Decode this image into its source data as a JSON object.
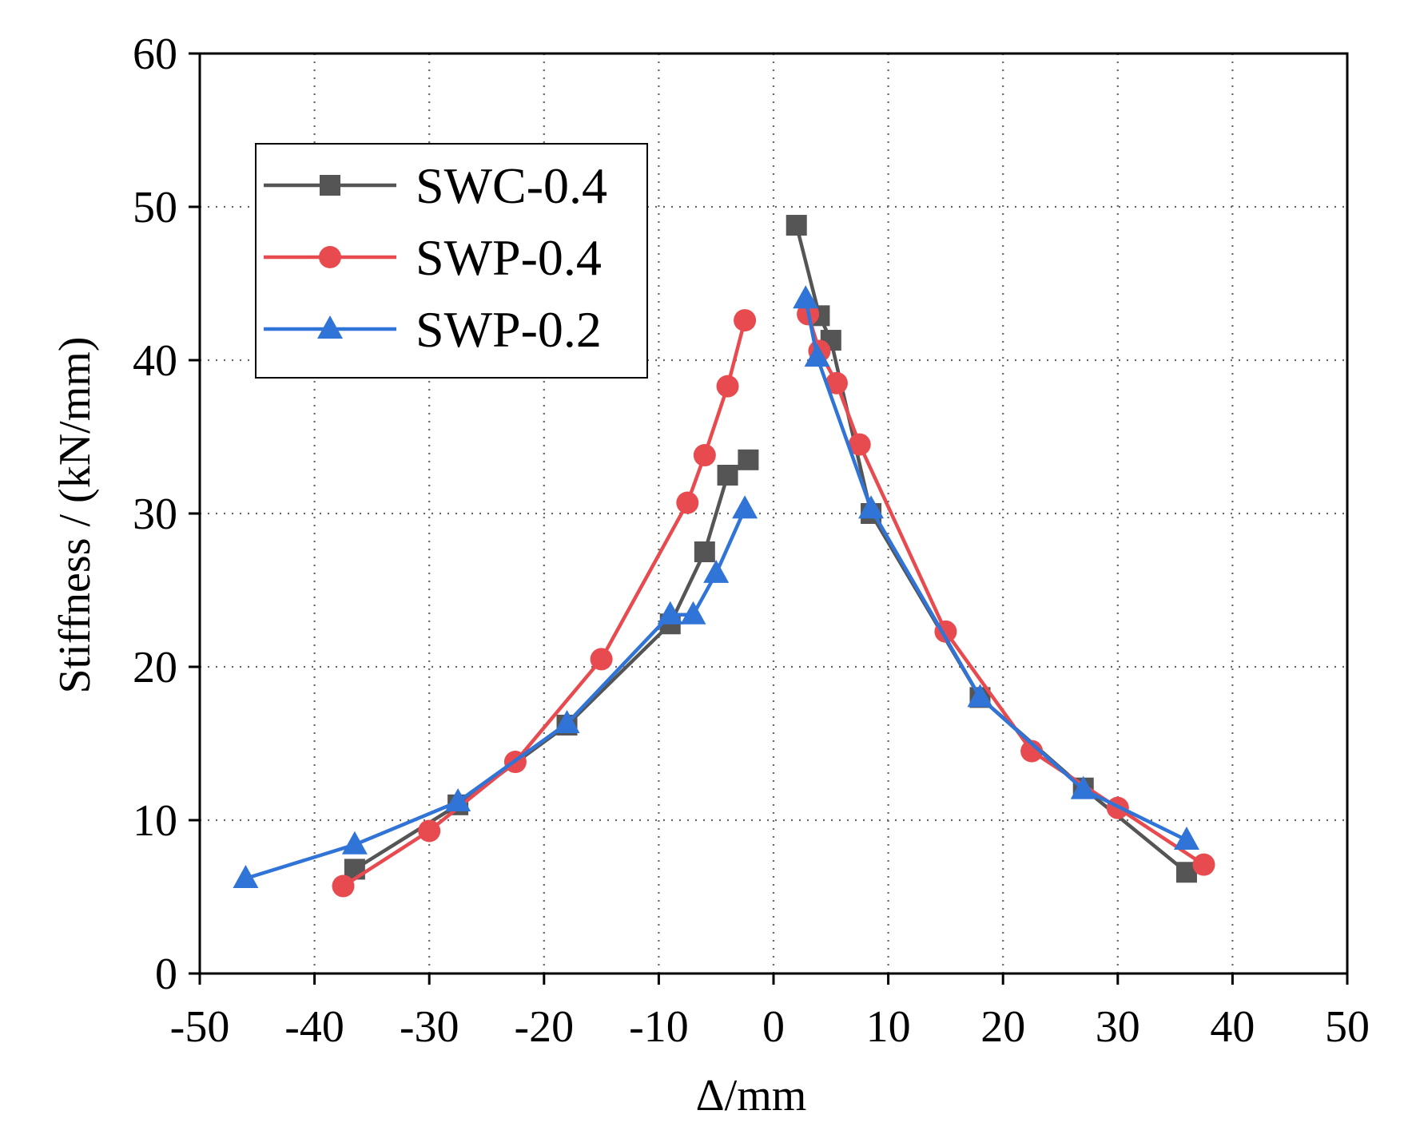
{
  "chart_data": {
    "type": "line",
    "title": "",
    "xlabel": "Δ/mm",
    "ylabel": "Stiffness / (kN/mm)",
    "xlim": [
      -50,
      50
    ],
    "ylim": [
      0,
      60
    ],
    "xticks": [
      -50,
      -40,
      -30,
      -20,
      -10,
      0,
      10,
      20,
      30,
      40,
      50
    ],
    "yticks": [
      0,
      10,
      20,
      30,
      40,
      50,
      60
    ],
    "grid": "dotted",
    "legend_position": "top-left",
    "series": [
      {
        "name": "SWC-0.4",
        "color": "#555555",
        "marker": "square",
        "neg": [
          [
            -36.5,
            6.8
          ],
          [
            -27.5,
            11.0
          ],
          [
            -18,
            16.2
          ],
          [
            -9,
            22.8
          ],
          [
            -6,
            27.5
          ],
          [
            -4,
            32.5
          ],
          [
            -2.2,
            33.5
          ]
        ],
        "pos": [
          [
            2,
            48.8
          ],
          [
            4,
            42.9
          ],
          [
            5,
            41.3
          ],
          [
            8.5,
            30.0
          ],
          [
            18,
            18.0
          ],
          [
            27,
            12.1
          ],
          [
            36,
            6.6
          ]
        ]
      },
      {
        "name": "SWP-0.4",
        "color": "#e84b4f",
        "marker": "circle",
        "neg": [
          [
            -37.5,
            5.7
          ],
          [
            -30,
            9.3
          ],
          [
            -22.5,
            13.8
          ],
          [
            -15,
            20.5
          ],
          [
            -7.5,
            30.7
          ],
          [
            -6,
            33.8
          ],
          [
            -4,
            38.3
          ],
          [
            -2.5,
            42.6
          ]
        ],
        "pos": [
          [
            3,
            43.0
          ],
          [
            4,
            40.6
          ],
          [
            5.5,
            38.5
          ],
          [
            7.5,
            34.5
          ],
          [
            15,
            22.3
          ],
          [
            22.5,
            14.5
          ],
          [
            30,
            10.8
          ],
          [
            37.5,
            7.1
          ]
        ]
      },
      {
        "name": "SWP-0.2",
        "color": "#2f74d6",
        "marker": "triangle",
        "neg": [
          [
            -46,
            6.2
          ],
          [
            -36.5,
            8.4
          ],
          [
            -27.5,
            11.2
          ],
          [
            -18,
            16.3
          ],
          [
            -9,
            23.4
          ],
          [
            -7,
            23.4
          ],
          [
            -5,
            26.1
          ],
          [
            -2.5,
            30.3
          ]
        ],
        "pos": [
          [
            2.8,
            44.0
          ],
          [
            3.8,
            40.2
          ],
          [
            8.5,
            30.3
          ],
          [
            18,
            18.0
          ],
          [
            27,
            12.0
          ],
          [
            36,
            8.7
          ]
        ]
      }
    ]
  }
}
